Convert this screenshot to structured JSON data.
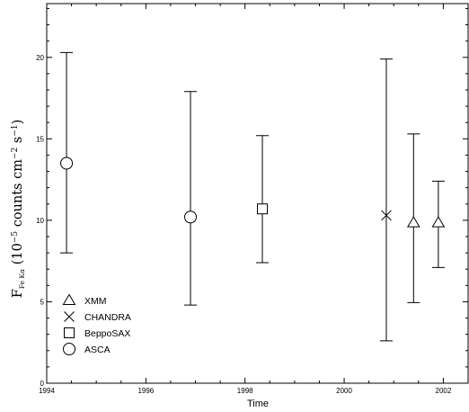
{
  "chart_data": {
    "type": "scatter",
    "xlabel": "Time",
    "ylabel": {
      "F": "F",
      "sub": "Fe Kα",
      "open": " (10",
      "exp1": "−5",
      "mid": " counts cm",
      "exp2": "−2",
      "mid2": " s",
      "exp3": "−1",
      "close": ")"
    },
    "xlim": [
      1994,
      2002.5
    ],
    "ylim": [
      0,
      23.3
    ],
    "xticks": [
      {
        "value": 1994,
        "label": "1994"
      },
      {
        "value": 1996,
        "label": "1996"
      },
      {
        "value": 1998,
        "label": "1998"
      },
      {
        "value": 2000,
        "label": "2000"
      },
      {
        "value": 2002,
        "label": "2002"
      }
    ],
    "yticks": [
      {
        "value": 0,
        "label": "0"
      },
      {
        "value": 5,
        "label": "5"
      },
      {
        "value": 10,
        "label": "10"
      },
      {
        "value": 15,
        "label": "15"
      },
      {
        "value": 20,
        "label": "20"
      }
    ],
    "series": [
      {
        "name": "ASCA",
        "marker": "circle",
        "points": [
          {
            "x": 1994.4,
            "y": 13.5,
            "ylo": 8.0,
            "yhi": 20.3
          },
          {
            "x": 1996.9,
            "y": 10.2,
            "ylo": 4.8,
            "yhi": 17.9
          }
        ]
      },
      {
        "name": "BeppoSAX",
        "marker": "square",
        "points": [
          {
            "x": 1998.35,
            "y": 10.7,
            "ylo": 7.4,
            "yhi": 15.2
          }
        ]
      },
      {
        "name": "CHANDRA",
        "marker": "x",
        "points": [
          {
            "x": 2000.85,
            "y": 10.3,
            "ylo": 2.6,
            "yhi": 19.9
          }
        ]
      },
      {
        "name": "XMM",
        "marker": "triangle",
        "points": [
          {
            "x": 2001.4,
            "y": 9.85,
            "ylo": 4.95,
            "yhi": 15.3
          },
          {
            "x": 2001.9,
            "y": 9.85,
            "ylo": 7.1,
            "yhi": 12.4
          }
        ]
      }
    ],
    "legend": {
      "placement": "bottom-left",
      "entries": [
        {
          "marker": "triangle",
          "label": "XMM"
        },
        {
          "marker": "x",
          "label": "CHANDRA"
        },
        {
          "marker": "square",
          "label": "BeppoSAX"
        },
        {
          "marker": "circle",
          "label": "ASCA"
        }
      ]
    },
    "grid": false
  }
}
